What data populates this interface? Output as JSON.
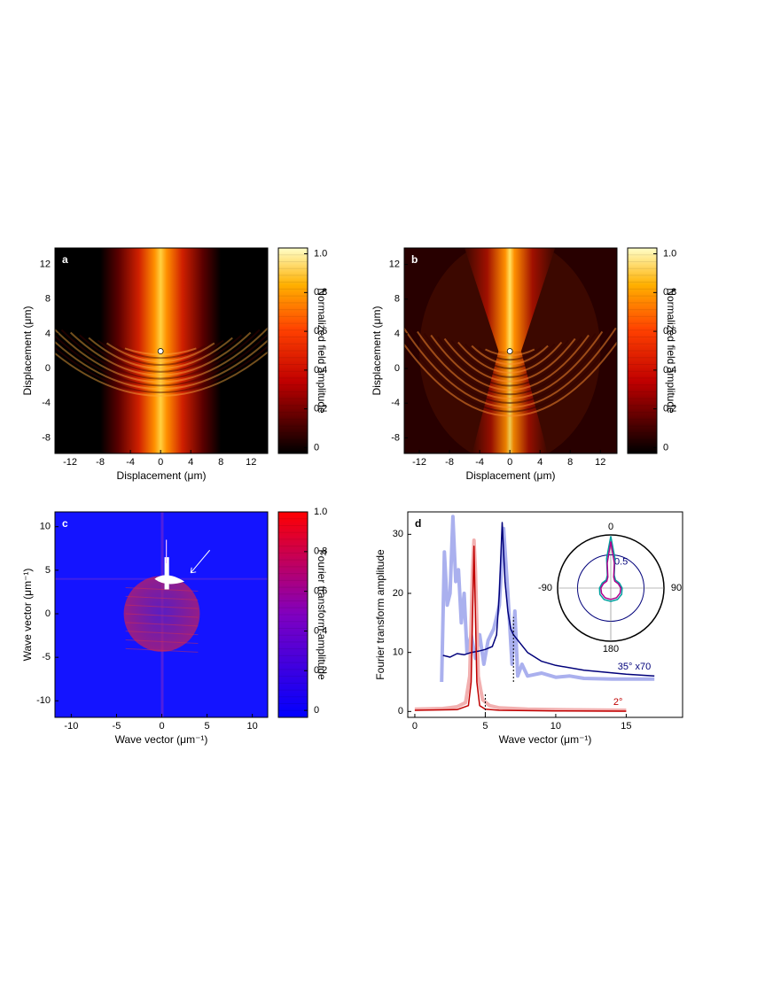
{
  "chart_data": [
    {
      "type": "heatmap",
      "panel_label": "a",
      "xlabel": "Displacement (μm)",
      "ylabel": "Displacement (μm)",
      "xlim": [
        -14,
        14.2
      ],
      "ylim": [
        -9.8,
        13.9
      ],
      "xticks": [
        -12,
        -8,
        -4,
        0,
        4,
        8,
        12
      ],
      "yticks": [
        -8,
        -4,
        0,
        4,
        8,
        12
      ],
      "source": [
        0,
        2
      ],
      "pattern": "field-a",
      "colormap": "hot",
      "colorbar": {
        "label": "Normalized field amplitude",
        "lim": [
          -0.03,
          1.03
        ],
        "ticks": [
          0,
          0.2,
          0.4,
          0.6,
          0.8,
          {
            "value": 1,
            "label": "1.0"
          }
        ]
      }
    },
    {
      "type": "heatmap",
      "panel_label": "b",
      "xlabel": "Displacement (μm)",
      "ylabel": "Displacement (μm)",
      "xlim": [
        -14,
        14.2
      ],
      "ylim": [
        -9.8,
        13.9
      ],
      "xticks": [
        -12,
        -8,
        -4,
        0,
        4,
        8,
        12
      ],
      "yticks": [
        -8,
        -4,
        0,
        4,
        8,
        12
      ],
      "source": [
        0,
        2
      ],
      "pattern": "field-b",
      "colormap": "hot",
      "colorbar": {
        "label": "Normalized field amplitude",
        "lim": [
          -0.03,
          1.03
        ],
        "ticks": [
          0,
          0.2,
          0.4,
          0.6,
          0.8,
          {
            "value": 1,
            "label": "1.0"
          }
        ]
      }
    },
    {
      "type": "heatmap",
      "panel_label": "c",
      "xlabel": "Wave vector (μm⁻¹)",
      "ylabel": "Wave vector (μm⁻¹)",
      "xlim": [
        -11.8,
        11.7
      ],
      "ylim": [
        -11.9,
        11.7
      ],
      "xticks": [
        -10,
        -5,
        0,
        5,
        10
      ],
      "yticks": [
        -10,
        -5,
        0,
        5,
        10
      ],
      "pattern": "fourier",
      "colormap": "blue-red",
      "colorbar": {
        "label": "Fourier transform amplitude",
        "lim": [
          -0.035,
          1.0
        ],
        "ticks": [
          0,
          0.2,
          0.4,
          0.6,
          0.8,
          {
            "value": 1,
            "label": "1.0"
          }
        ]
      }
    },
    {
      "type": "line",
      "panel_label": "d",
      "xlabel": "Wave vector (μm⁻¹)",
      "ylabel": "Fourier transform amplitude",
      "xlim": [
        -0.5,
        19
      ],
      "ylim": [
        -1,
        33.8
      ],
      "xticks": [
        0,
        5,
        10,
        15
      ],
      "yticks": [
        0,
        10,
        20,
        30
      ],
      "series": [
        {
          "color": "#aab0ee",
          "width": 4,
          "x": [
            1.9,
            2.1,
            2.3,
            2.5,
            2.7,
            2.9,
            3.1,
            3.3,
            3.5,
            3.7,
            4,
            4.3,
            4.6,
            4.9,
            5.2,
            5.6,
            6,
            6.3,
            6.6,
            6.9,
            7.1,
            7.3,
            7.6,
            8,
            9,
            10,
            11,
            12,
            14,
            17
          ],
          "values": [
            5,
            27,
            18,
            20,
            33,
            22,
            24,
            15,
            20,
            10,
            13,
            9,
            13,
            8,
            12,
            14,
            18,
            31,
            20,
            8,
            17,
            6,
            8,
            6,
            6.5,
            5.8,
            6,
            5.6,
            5.5,
            5.5
          ]
        },
        {
          "color": "#f2b0b0",
          "width": 4,
          "x": [
            0,
            2,
            3,
            3.6,
            3.9,
            4.1,
            4.2,
            4.3,
            4.5,
            4.8,
            5.3,
            6,
            8,
            10,
            15
          ],
          "values": [
            0.4,
            0.5,
            0.8,
            1.5,
            6,
            24,
            29,
            24,
            6,
            2,
            1,
            0.6,
            0.4,
            0.3,
            0.2
          ]
        },
        {
          "name": "35° x70",
          "color": "#00007a",
          "width": 1.5,
          "x": [
            2,
            2.5,
            3,
            3.5,
            4,
            4.5,
            5,
            5.5,
            5.8,
            6,
            6.2,
            6.4,
            6.6,
            6.8,
            7,
            8,
            9,
            10,
            12,
            15,
            17
          ],
          "values": [
            9.5,
            9.2,
            9.8,
            9.6,
            10,
            10.2,
            10.5,
            11,
            13,
            20,
            32,
            22,
            17,
            14,
            13,
            10,
            8.5,
            7.8,
            7,
            6.3,
            6
          ]
        },
        {
          "name": "2°",
          "color": "#c00000",
          "width": 1.5,
          "x": [
            0,
            3,
            3.8,
            4,
            4.2,
            4.4,
            4.6,
            5,
            6,
            10,
            15
          ],
          "values": [
            0.2,
            0.3,
            1,
            5,
            28,
            5,
            1,
            0.4,
            0.2,
            0.1,
            0.05
          ]
        }
      ],
      "dashed_lines": [
        {
          "x": 5,
          "y": [
            -1,
            3
          ]
        },
        {
          "x": 7,
          "y": [
            5,
            16
          ]
        }
      ],
      "inset": {
        "type": "polar",
        "rlim": [
          0,
          0.8
        ],
        "rticks": [
          0.5
        ],
        "angle_ticks": [
          0,
          90,
          180,
          -90
        ],
        "series": [
          {
            "color": "#00a0a0",
            "angles": [
              -180,
              -150,
              -120,
              -90,
              -60,
              -30,
              -15,
              -8,
              0,
              8,
              15,
              30,
              60,
              90,
              120,
              150,
              180
            ],
            "values": [
              0.2,
              0.2,
              0.19,
              0.17,
              0.15,
              0.14,
              0.2,
              0.45,
              0.78,
              0.45,
              0.2,
              0.14,
              0.15,
              0.17,
              0.19,
              0.2,
              0.2
            ]
          },
          {
            "color": "#b0008c",
            "angles": [
              -180,
              -150,
              -120,
              -90,
              -60,
              -30,
              -15,
              -8,
              0,
              8,
              15,
              30,
              60,
              90,
              120,
              150,
              180
            ],
            "values": [
              0.17,
              0.17,
              0.16,
              0.15,
              0.13,
              0.12,
              0.17,
              0.38,
              0.7,
              0.38,
              0.17,
              0.12,
              0.13,
              0.15,
              0.16,
              0.17,
              0.17
            ]
          }
        ]
      }
    }
  ]
}
